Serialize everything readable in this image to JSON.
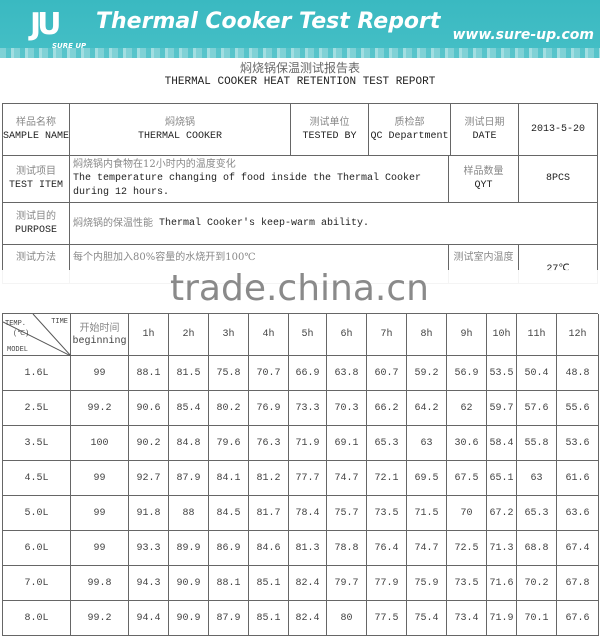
{
  "banner": {
    "logo_text": "SURE UP",
    "title": "Thermal Cooker Test Report",
    "url": "www.sure-up.com",
    "color": "#3ab9c1"
  },
  "titles": {
    "zh": "焖烧锅保温测试报告表",
    "en": "THERMAL COOKER HEAT RETENTION TEST REPORT"
  },
  "info": {
    "sample_name": {
      "zh": "样品名称",
      "en": "SAMPLE NAME",
      "value_zh": "焖烧锅",
      "value_en": "THERMAL COOKER"
    },
    "tested_by": {
      "zh": "测试单位",
      "en": "TESTED BY",
      "value_zh": "质检部",
      "value_en": "QC Department"
    },
    "date": {
      "zh": "测试日期",
      "en": "DATE",
      "value": "2013-5-20"
    },
    "test_item": {
      "zh": "测试项目",
      "en": "TEST ITEM",
      "value_zh": "焖烧锅内食物在12小时内的温度变化",
      "value_en": "The temperature changing of food inside the Thermal Cooker during 12 hours."
    },
    "qty": {
      "zh": "样品数量",
      "en": "QYT",
      "value": "8PCS"
    },
    "purpose": {
      "zh": "测试目的",
      "en": "PURPOSE",
      "value_zh": "焖烧锅的保温性能",
      "value_en": "Thermal Cooker's keep-warm ability."
    },
    "method": {
      "zh": "测试方法",
      "value": "每个内胆加入80%容量的水烧开到100℃"
    },
    "room_temp": {
      "zh": "测试室内温度",
      "value": "27℃"
    }
  },
  "watermark": "trade.china.cn",
  "table": {
    "corner": {
      "temp": "TEMP.",
      "unit": "(℃)",
      "time": "TIME",
      "model": "MODEL"
    },
    "begin": {
      "zh": "开始时间",
      "en": "beginning"
    },
    "hours": [
      "1h",
      "2h",
      "3h",
      "4h",
      "5h",
      "6h",
      "7h",
      "8h",
      "9h",
      "10h",
      "11h",
      "12h"
    ],
    "rows": [
      [
        "1.6L",
        "99",
        "88.1",
        "81.5",
        "75.8",
        "70.7",
        "66.9",
        "63.8",
        "60.7",
        "59.2",
        "56.9",
        "53.5",
        "50.4",
        "48.8"
      ],
      [
        "2.5L",
        "99.2",
        "90.6",
        "85.4",
        "80.2",
        "76.9",
        "73.3",
        "70.3",
        "66.2",
        "64.2",
        "62",
        "59.7",
        "57.6",
        "55.6"
      ],
      [
        "3.5L",
        "100",
        "90.2",
        "84.8",
        "79.6",
        "76.3",
        "71.9",
        "69.1",
        "65.3",
        "63",
        "30.6",
        "58.4",
        "55.8",
        "53.6"
      ],
      [
        "4.5L",
        "99",
        "92.7",
        "87.9",
        "84.1",
        "81.2",
        "77.7",
        "74.7",
        "72.1",
        "69.5",
        "67.5",
        "65.1",
        "63",
        "61.6"
      ],
      [
        "5.0L",
        "99",
        "91.8",
        "88",
        "84.5",
        "81.7",
        "78.4",
        "75.7",
        "73.5",
        "71.5",
        "70",
        "67.2",
        "65.3",
        "63.6"
      ],
      [
        "6.0L",
        "99",
        "93.3",
        "89.9",
        "86.9",
        "84.6",
        "81.3",
        "78.8",
        "76.4",
        "74.7",
        "72.5",
        "71.3",
        "68.8",
        "67.4"
      ],
      [
        "7.0L",
        "99.8",
        "94.3",
        "90.9",
        "88.1",
        "85.1",
        "82.4",
        "79.7",
        "77.9",
        "75.9",
        "73.5",
        "71.6",
        "70.2",
        "67.8"
      ],
      [
        "8.0L",
        "99.2",
        "94.4",
        "90.9",
        "87.9",
        "85.1",
        "82.4",
        "80",
        "77.5",
        "75.4",
        "73.4",
        "71.9",
        "70.1",
        "67.6"
      ]
    ]
  }
}
